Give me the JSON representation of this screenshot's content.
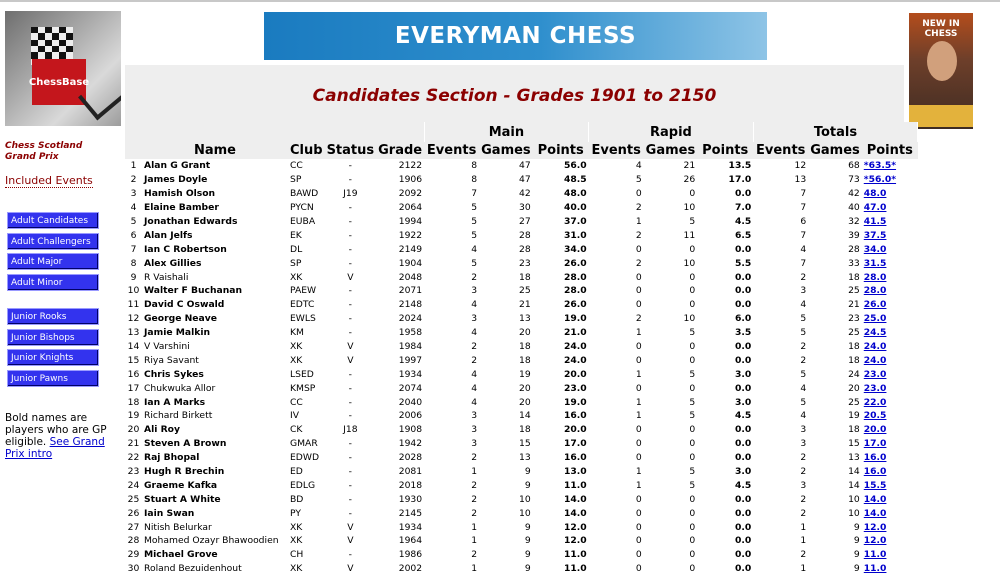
{
  "logos": {
    "left": "ChessBase",
    "banner": "EVERYMAN CHESS",
    "magazine": "NEW IN CHESS"
  },
  "sidebar": {
    "title_line1": "Chess Scotland",
    "title_line2": "Grand Prix",
    "included_link": "Included Events",
    "buttons": [
      "Adult Candidates",
      "Adult Challengers",
      "Adult Major",
      "Adult Minor",
      "Junior Rooks",
      "Junior Bishops",
      "Junior Knights",
      "Junior Pawns"
    ],
    "note_text": "Bold names are players who are GP eligible.",
    "note_link": "See Grand Prix intro"
  },
  "page_title": "Candidates Section - Grades 1901 to 2150",
  "table": {
    "groups": [
      "Main",
      "Rapid",
      "Totals"
    ],
    "columns": [
      "Name",
      "Club",
      "Status",
      "Grade",
      "Events",
      "Games",
      "Points",
      "Events",
      "Games",
      "Points",
      "Events",
      "Games",
      "Points"
    ],
    "rows": [
      [
        "1",
        "Alan G Grant",
        "CC",
        "-",
        "2122",
        "8",
        "47",
        "56.0",
        "4",
        "21",
        "13.5",
        "12",
        "68",
        "*63.5*"
      ],
      [
        "2",
        "James Doyle",
        "SP",
        "-",
        "1906",
        "8",
        "47",
        "48.5",
        "5",
        "26",
        "17.0",
        "13",
        "73",
        "*56.0*"
      ],
      [
        "3",
        "Hamish Olson",
        "BAWD",
        "J19",
        "2092",
        "7",
        "42",
        "48.0",
        "0",
        "0",
        "0.0",
        "7",
        "42",
        "48.0"
      ],
      [
        "4",
        "Elaine Bamber",
        "PYCN",
        "-",
        "2064",
        "5",
        "30",
        "40.0",
        "2",
        "10",
        "7.0",
        "7",
        "40",
        "47.0"
      ],
      [
        "5",
        "Jonathan Edwards",
        "EUBA",
        "-",
        "1994",
        "5",
        "27",
        "37.0",
        "1",
        "5",
        "4.5",
        "6",
        "32",
        "41.5"
      ],
      [
        "6",
        "Alan Jelfs",
        "EK",
        "-",
        "1922",
        "5",
        "28",
        "31.0",
        "2",
        "11",
        "6.5",
        "7",
        "39",
        "37.5"
      ],
      [
        "7",
        "Ian C Robertson",
        "DL",
        "-",
        "2149",
        "4",
        "28",
        "34.0",
        "0",
        "0",
        "0.0",
        "4",
        "28",
        "34.0"
      ],
      [
        "8",
        "Alex Gillies",
        "SP",
        "-",
        "1904",
        "5",
        "23",
        "26.0",
        "2",
        "10",
        "5.5",
        "7",
        "33",
        "31.5"
      ],
      [
        "9",
        "R Vaishali",
        "XK",
        "V",
        "2048",
        "2",
        "18",
        "28.0",
        "0",
        "0",
        "0.0",
        "2",
        "18",
        "28.0"
      ],
      [
        "10",
        "Walter F Buchanan",
        "PAEW",
        "-",
        "2071",
        "3",
        "25",
        "28.0",
        "0",
        "0",
        "0.0",
        "3",
        "25",
        "28.0"
      ],
      [
        "11",
        "David C Oswald",
        "EDTC",
        "-",
        "2148",
        "4",
        "21",
        "26.0",
        "0",
        "0",
        "0.0",
        "4",
        "21",
        "26.0"
      ],
      [
        "12",
        "George Neave",
        "EWLS",
        "-",
        "2024",
        "3",
        "13",
        "19.0",
        "2",
        "10",
        "6.0",
        "5",
        "23",
        "25.0"
      ],
      [
        "13",
        "Jamie Malkin",
        "KM",
        "-",
        "1958",
        "4",
        "20",
        "21.0",
        "1",
        "5",
        "3.5",
        "5",
        "25",
        "24.5"
      ],
      [
        "14",
        "V Varshini",
        "XK",
        "V",
        "1984",
        "2",
        "18",
        "24.0",
        "0",
        "0",
        "0.0",
        "2",
        "18",
        "24.0"
      ],
      [
        "15",
        "Riya Savant",
        "XK",
        "V",
        "1997",
        "2",
        "18",
        "24.0",
        "0",
        "0",
        "0.0",
        "2",
        "18",
        "24.0"
      ],
      [
        "16",
        "Chris Sykes",
        "LSED",
        "-",
        "1934",
        "4",
        "19",
        "20.0",
        "1",
        "5",
        "3.0",
        "5",
        "24",
        "23.0"
      ],
      [
        "17",
        "Chukwuka Allor",
        "KMSP",
        "-",
        "2074",
        "4",
        "20",
        "23.0",
        "0",
        "0",
        "0.0",
        "4",
        "20",
        "23.0"
      ],
      [
        "18",
        "Ian A Marks",
        "CC",
        "-",
        "2040",
        "4",
        "20",
        "19.0",
        "1",
        "5",
        "3.0",
        "5",
        "25",
        "22.0"
      ],
      [
        "19",
        "Richard Birkett",
        "IV",
        "-",
        "2006",
        "3",
        "14",
        "16.0",
        "1",
        "5",
        "4.5",
        "4",
        "19",
        "20.5"
      ],
      [
        "20",
        "Ali Roy",
        "CK",
        "J18",
        "1908",
        "3",
        "18",
        "20.0",
        "0",
        "0",
        "0.0",
        "3",
        "18",
        "20.0"
      ],
      [
        "21",
        "Steven A Brown",
        "GMAR",
        "-",
        "1942",
        "3",
        "15",
        "17.0",
        "0",
        "0",
        "0.0",
        "3",
        "15",
        "17.0"
      ],
      [
        "22",
        "Raj Bhopal",
        "EDWD",
        "-",
        "2028",
        "2",
        "13",
        "16.0",
        "0",
        "0",
        "0.0",
        "2",
        "13",
        "16.0"
      ],
      [
        "23",
        "Hugh R Brechin",
        "ED",
        "-",
        "2081",
        "1",
        "9",
        "13.0",
        "1",
        "5",
        "3.0",
        "2",
        "14",
        "16.0"
      ],
      [
        "24",
        "Graeme Kafka",
        "EDLG",
        "-",
        "2018",
        "2",
        "9",
        "11.0",
        "1",
        "5",
        "4.5",
        "3",
        "14",
        "15.5"
      ],
      [
        "25",
        "Stuart A White",
        "BD",
        "-",
        "1930",
        "2",
        "10",
        "14.0",
        "0",
        "0",
        "0.0",
        "2",
        "10",
        "14.0"
      ],
      [
        "26",
        "Iain Swan",
        "PY",
        "-",
        "2145",
        "2",
        "10",
        "14.0",
        "0",
        "0",
        "0.0",
        "2",
        "10",
        "14.0"
      ],
      [
        "27",
        "Nitish Belurkar",
        "XK",
        "V",
        "1934",
        "1",
        "9",
        "12.0",
        "0",
        "0",
        "0.0",
        "1",
        "9",
        "12.0"
      ],
      [
        "28",
        "Mohamed Ozayr Bhawoodien",
        "XK",
        "V",
        "1964",
        "1",
        "9",
        "12.0",
        "0",
        "0",
        "0.0",
        "1",
        "9",
        "12.0"
      ],
      [
        "29",
        "Michael Grove",
        "CH",
        "-",
        "1986",
        "2",
        "9",
        "11.0",
        "0",
        "0",
        "0.0",
        "2",
        "9",
        "11.0"
      ],
      [
        "30",
        "Roland Bezuidenhout",
        "XK",
        "V",
        "2002",
        "1",
        "9",
        "11.0",
        "0",
        "0",
        "0.0",
        "1",
        "9",
        "11.0"
      ]
    ],
    "bold_rows": [
      1,
      2,
      3,
      4,
      5,
      6,
      7,
      8,
      10,
      11,
      12,
      13,
      16,
      18,
      20,
      21,
      22,
      23,
      24,
      25,
      26,
      29
    ]
  }
}
